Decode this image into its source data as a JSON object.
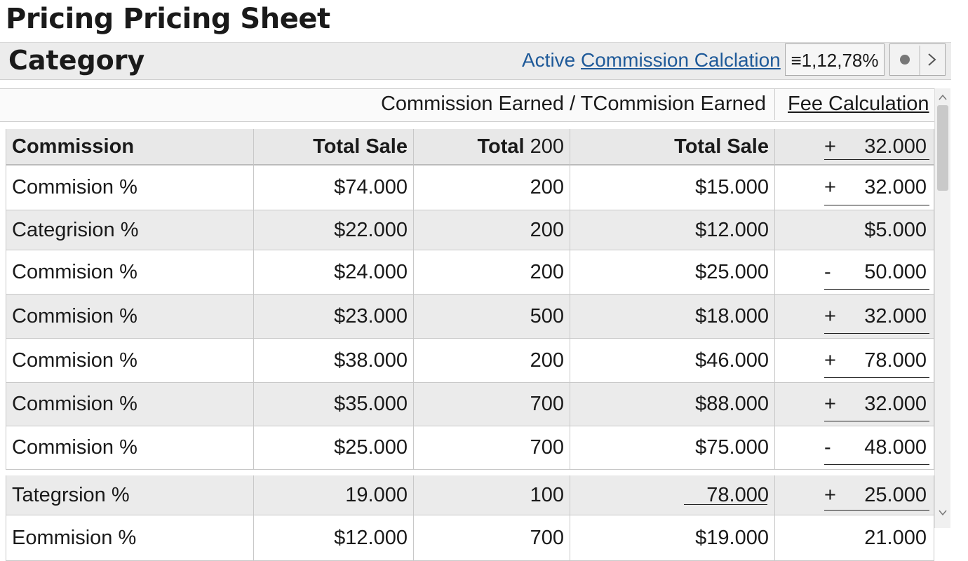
{
  "header": {
    "title": "Pricing Pricing Sheet"
  },
  "toolbar": {
    "category": "Category",
    "active": "Active",
    "link": "Commission Calclation",
    "zoom": "≡1,12,78%"
  },
  "group_header": {
    "earned": "Commission Earned / TCommision Earned",
    "fee": "Fee Calculation"
  },
  "table": {
    "columns": [
      "Commission",
      "Total Sale",
      {
        "bold": "Total",
        "rest": "200"
      },
      "Total Sale",
      {
        "sign": "+",
        "value": "32.000"
      }
    ],
    "rows": [
      [
        "Commision %",
        "$74.000",
        "200",
        "$15.000",
        {
          "sign": "+",
          "value": "32.000"
        }
      ],
      [
        "Categrision %",
        "$22.000",
        "200",
        "$12.000",
        {
          "value": "$5.000"
        }
      ],
      [
        "Commision %",
        "$24.000",
        "200",
        "$25.000",
        {
          "sign": "-",
          "value": "50.000"
        }
      ],
      [
        "Commision %",
        "$23.000",
        "500",
        "$18.000",
        {
          "sign": "+",
          "value": "32.000"
        }
      ],
      [
        "Commision %",
        "$38.000",
        "200",
        "$46.000",
        {
          "sign": "+",
          "value": "78.000"
        }
      ],
      [
        "Commision %",
        "$35.000",
        "700",
        "$88.000",
        {
          "sign": "+",
          "value": "32.000"
        }
      ],
      [
        "Commision %",
        "$25.000",
        "700",
        "$75.000",
        {
          "sign": "-",
          "value": "48.000"
        }
      ],
      [
        "Tategrsion %",
        "19.000",
        "100",
        "78.000",
        {
          "sign": "+",
          "value": "25.000"
        }
      ],
      [
        "Eommision %",
        "$12.000",
        "700",
        "$19.000",
        {
          "value": "21.000"
        }
      ]
    ]
  }
}
